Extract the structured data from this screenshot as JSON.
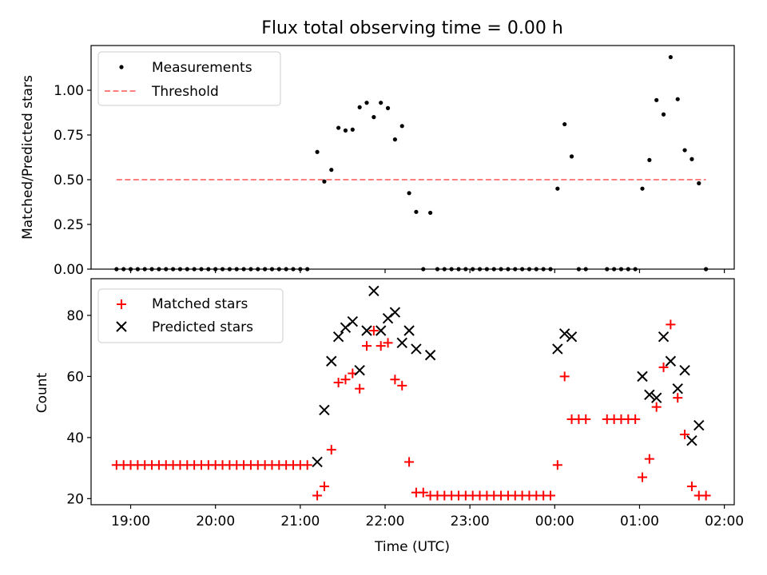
{
  "chart_data": [
    {
      "type": "scatter",
      "title": "Flux total observing time = 0.00 h",
      "ylabel": "Matched/Predicted stars",
      "xlabel": "",
      "x_axis": "time",
      "ylim": [
        0,
        1.25
      ],
      "yticks": [
        0,
        0.25,
        0.5,
        0.75,
        1.0
      ],
      "ytick_labels": [
        "0.00",
        "0.25",
        "0.50",
        "0.75",
        "1.00"
      ],
      "legend": {
        "placement": "upper-left",
        "entries": [
          "Measurements",
          "Threshold"
        ]
      },
      "series": [
        {
          "name": "Measurements",
          "marker": "dot",
          "color": "#000000",
          "points": [
            [
              "18:50",
              0
            ],
            [
              "18:55",
              0
            ],
            [
              "19:00",
              0
            ],
            [
              "19:05",
              0
            ],
            [
              "19:10",
              0
            ],
            [
              "19:15",
              0
            ],
            [
              "19:20",
              0
            ],
            [
              "19:25",
              0
            ],
            [
              "19:30",
              0
            ],
            [
              "19:35",
              0
            ],
            [
              "19:40",
              0
            ],
            [
              "19:45",
              0
            ],
            [
              "19:50",
              0
            ],
            [
              "19:55",
              0
            ],
            [
              "20:00",
              0
            ],
            [
              "20:05",
              0
            ],
            [
              "20:10",
              0
            ],
            [
              "20:15",
              0
            ],
            [
              "20:20",
              0
            ],
            [
              "20:25",
              0
            ],
            [
              "20:30",
              0
            ],
            [
              "20:35",
              0
            ],
            [
              "20:40",
              0
            ],
            [
              "20:45",
              0
            ],
            [
              "20:50",
              0
            ],
            [
              "20:55",
              0
            ],
            [
              "21:00",
              0
            ],
            [
              "21:05",
              0
            ],
            [
              "21:12",
              0.655
            ],
            [
              "21:17",
              0.49
            ],
            [
              "21:22",
              0.555
            ],
            [
              "21:27",
              0.79
            ],
            [
              "21:32",
              0.775
            ],
            [
              "21:37",
              0.78
            ],
            [
              "21:42",
              0.905
            ],
            [
              "21:47",
              0.93
            ],
            [
              "21:52",
              0.85
            ],
            [
              "21:57",
              0.93
            ],
            [
              "22:02",
              0.9
            ],
            [
              "22:07",
              0.725
            ],
            [
              "22:12",
              0.8
            ],
            [
              "22:17",
              0.425
            ],
            [
              "22:22",
              0.32
            ],
            [
              "22:27",
              0
            ],
            [
              "22:32",
              0.315
            ],
            [
              "22:37",
              0
            ],
            [
              "22:42",
              0
            ],
            [
              "22:47",
              0
            ],
            [
              "22:52",
              0
            ],
            [
              "22:57",
              0
            ],
            [
              "23:02",
              0
            ],
            [
              "23:07",
              0
            ],
            [
              "23:12",
              0
            ],
            [
              "23:17",
              0
            ],
            [
              "23:22",
              0
            ],
            [
              "23:27",
              0
            ],
            [
              "23:32",
              0
            ],
            [
              "23:37",
              0
            ],
            [
              "23:42",
              0
            ],
            [
              "23:47",
              0
            ],
            [
              "23:52",
              0
            ],
            [
              "23:57",
              0
            ],
            [
              "00:02",
              0.45
            ],
            [
              "00:07",
              0.81
            ],
            [
              "00:12",
              0.63
            ],
            [
              "00:17",
              0
            ],
            [
              "00:22",
              0
            ],
            [
              "00:37",
              0
            ],
            [
              "00:42",
              0
            ],
            [
              "00:47",
              0
            ],
            [
              "00:52",
              0
            ],
            [
              "00:57",
              0
            ],
            [
              "01:02",
              0.45
            ],
            [
              "01:07",
              0.61
            ],
            [
              "01:12",
              0.945
            ],
            [
              "01:17",
              0.865
            ],
            [
              "01:22",
              1.185
            ],
            [
              "01:27",
              0.95
            ],
            [
              "01:32",
              0.665
            ],
            [
              "01:37",
              0.615
            ],
            [
              "01:42",
              0.48
            ],
            [
              "01:47",
              0
            ]
          ]
        },
        {
          "name": "Threshold",
          "style": "dashed",
          "color": "#ff7f7f",
          "points": [
            [
              "18:50",
              0.5
            ],
            [
              "01:47",
              0.5
            ]
          ]
        }
      ]
    },
    {
      "type": "scatter",
      "title": "",
      "ylabel": "Count",
      "xlabel": "Time (UTC)",
      "x_axis": "time",
      "ylim": [
        18,
        92
      ],
      "yticks": [
        20,
        40,
        60,
        80
      ],
      "ytick_labels": [
        "20",
        "40",
        "60",
        "80"
      ],
      "xticks": [
        "19:00",
        "20:00",
        "21:00",
        "22:00",
        "23:00",
        "00:00",
        "01:00",
        "02:00"
      ],
      "xlim": [
        "18:32",
        "02:07"
      ],
      "legend": {
        "placement": "upper-left",
        "entries": [
          "Matched stars",
          "Predicted stars"
        ]
      },
      "series": [
        {
          "name": "Matched stars",
          "marker": "plus",
          "color": "#ff0000",
          "points": [
            [
              "18:50",
              31
            ],
            [
              "18:55",
              31
            ],
            [
              "19:00",
              31
            ],
            [
              "19:05",
              31
            ],
            [
              "19:10",
              31
            ],
            [
              "19:15",
              31
            ],
            [
              "19:20",
              31
            ],
            [
              "19:25",
              31
            ],
            [
              "19:30",
              31
            ],
            [
              "19:35",
              31
            ],
            [
              "19:40",
              31
            ],
            [
              "19:45",
              31
            ],
            [
              "19:50",
              31
            ],
            [
              "19:55",
              31
            ],
            [
              "20:00",
              31
            ],
            [
              "20:05",
              31
            ],
            [
              "20:10",
              31
            ],
            [
              "20:15",
              31
            ],
            [
              "20:20",
              31
            ],
            [
              "20:25",
              31
            ],
            [
              "20:30",
              31
            ],
            [
              "20:35",
              31
            ],
            [
              "20:40",
              31
            ],
            [
              "20:45",
              31
            ],
            [
              "20:50",
              31
            ],
            [
              "20:55",
              31
            ],
            [
              "21:00",
              31
            ],
            [
              "21:05",
              31
            ],
            [
              "21:12",
              21
            ],
            [
              "21:17",
              24
            ],
            [
              "21:22",
              36
            ],
            [
              "21:27",
              58
            ],
            [
              "21:32",
              59
            ],
            [
              "21:37",
              61
            ],
            [
              "21:42",
              56
            ],
            [
              "21:47",
              70
            ],
            [
              "21:52",
              75
            ],
            [
              "21:57",
              70
            ],
            [
              "22:02",
              71
            ],
            [
              "22:07",
              59
            ],
            [
              "22:12",
              57
            ],
            [
              "22:17",
              32
            ],
            [
              "22:22",
              22
            ],
            [
              "22:27",
              22
            ],
            [
              "22:32",
              21
            ],
            [
              "22:37",
              21
            ],
            [
              "22:42",
              21
            ],
            [
              "22:47",
              21
            ],
            [
              "22:52",
              21
            ],
            [
              "22:57",
              21
            ],
            [
              "23:02",
              21
            ],
            [
              "23:07",
              21
            ],
            [
              "23:12",
              21
            ],
            [
              "23:17",
              21
            ],
            [
              "23:22",
              21
            ],
            [
              "23:27",
              21
            ],
            [
              "23:32",
              21
            ],
            [
              "23:37",
              21
            ],
            [
              "23:42",
              21
            ],
            [
              "23:47",
              21
            ],
            [
              "23:52",
              21
            ],
            [
              "23:57",
              21
            ],
            [
              "00:02",
              31
            ],
            [
              "00:07",
              60
            ],
            [
              "00:12",
              46
            ],
            [
              "00:17",
              46
            ],
            [
              "00:22",
              46
            ],
            [
              "00:37",
              46
            ],
            [
              "00:42",
              46
            ],
            [
              "00:47",
              46
            ],
            [
              "00:52",
              46
            ],
            [
              "00:57",
              46
            ],
            [
              "01:02",
              27
            ],
            [
              "01:07",
              33
            ],
            [
              "01:12",
              50
            ],
            [
              "01:17",
              63
            ],
            [
              "01:22",
              77
            ],
            [
              "01:27",
              53
            ],
            [
              "01:32",
              41
            ],
            [
              "01:37",
              24
            ],
            [
              "01:42",
              21
            ],
            [
              "01:47",
              21
            ]
          ]
        },
        {
          "name": "Predicted stars",
          "marker": "x",
          "color": "#000000",
          "points": [
            [
              "21:12",
              32
            ],
            [
              "21:17",
              49
            ],
            [
              "21:22",
              65
            ],
            [
              "21:27",
              73
            ],
            [
              "21:32",
              76
            ],
            [
              "21:37",
              78
            ],
            [
              "21:42",
              62
            ],
            [
              "21:47",
              75
            ],
            [
              "21:52",
              88
            ],
            [
              "21:57",
              75
            ],
            [
              "22:02",
              79
            ],
            [
              "22:07",
              81
            ],
            [
              "22:12",
              71
            ],
            [
              "22:17",
              75
            ],
            [
              "22:22",
              69
            ],
            [
              "22:32",
              67
            ],
            [
              "00:02",
              69
            ],
            [
              "00:07",
              74
            ],
            [
              "00:12",
              73
            ],
            [
              "01:02",
              60
            ],
            [
              "01:07",
              54
            ],
            [
              "01:12",
              53
            ],
            [
              "01:17",
              73
            ],
            [
              "01:22",
              65
            ],
            [
              "01:27",
              56
            ],
            [
              "01:32",
              62
            ],
            [
              "01:37",
              39
            ],
            [
              "01:42",
              44
            ]
          ]
        }
      ]
    }
  ]
}
